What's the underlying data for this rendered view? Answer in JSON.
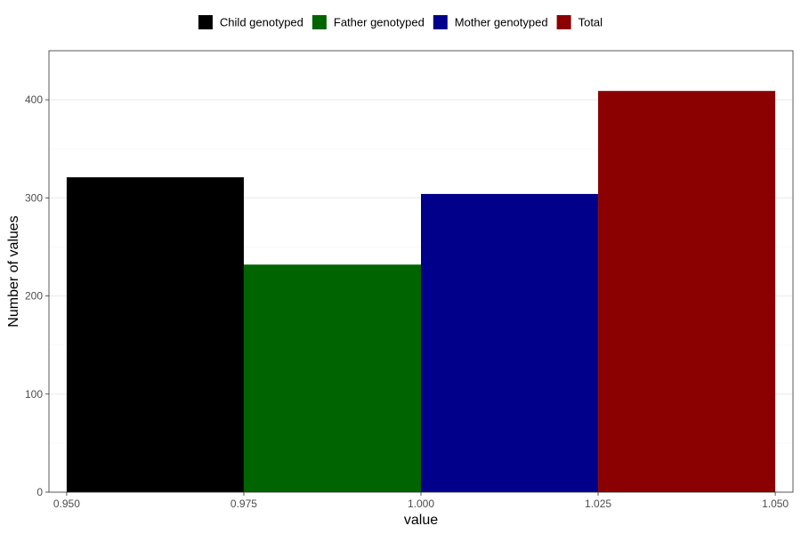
{
  "chart_data": {
    "type": "bar",
    "title": "",
    "xlabel": "value",
    "ylabel": "Number of values",
    "xlim": [
      0.9475,
      1.0525
    ],
    "ylim": [
      0,
      450
    ],
    "x_ticks": [
      "0.950",
      "0.975",
      "1.000",
      "1.025",
      "1.050"
    ],
    "x_tick_values": [
      0.95,
      0.975,
      1.0,
      1.025,
      1.05
    ],
    "y_ticks": [
      "0",
      "100",
      "200",
      "300",
      "400"
    ],
    "y_tick_values": [
      0,
      100,
      200,
      300,
      400
    ],
    "grid": true,
    "legend_position": "top",
    "series": [
      {
        "name": "Child genotyped",
        "x_start": 0.95,
        "x_end": 0.975,
        "value": 321,
        "color": "#000000"
      },
      {
        "name": "Father genotyped",
        "x_start": 0.975,
        "x_end": 1.0,
        "value": 232,
        "color": "#006400"
      },
      {
        "name": "Mother genotyped",
        "x_start": 1.0,
        "x_end": 1.025,
        "value": 304,
        "color": "#00008b"
      },
      {
        "name": "Total",
        "x_start": 1.025,
        "x_end": 1.05,
        "value": 409,
        "color": "#8b0000"
      }
    ]
  }
}
